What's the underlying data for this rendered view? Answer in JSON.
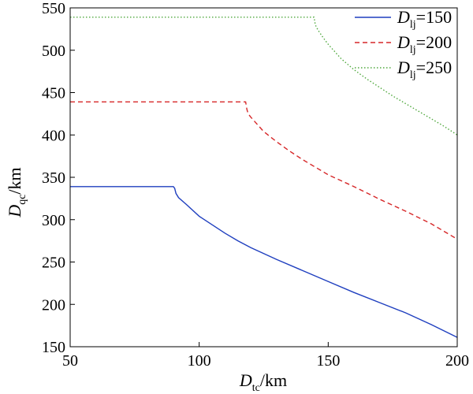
{
  "chart_data": {
    "type": "line",
    "xlabel": {
      "symbol": "D",
      "sub": "tc",
      "unit": "/km"
    },
    "ylabel": {
      "symbol": "D",
      "sub": "qc",
      "unit": "/km"
    },
    "xlim": [
      50,
      200
    ],
    "ylim": [
      150,
      550
    ],
    "xticks": [
      50,
      100,
      150,
      200
    ],
    "yticks": [
      150,
      200,
      250,
      300,
      350,
      400,
      450,
      500,
      550
    ],
    "grid": false,
    "legend_position": "top-right",
    "series": [
      {
        "legend": {
          "symbol": "D",
          "sub": "lj",
          "value": "=150"
        },
        "color": "#1f3fbf",
        "dash": "solid",
        "points": [
          [
            50,
            339
          ],
          [
            90,
            339
          ],
          [
            90.5,
            337
          ],
          [
            91,
            331
          ],
          [
            92,
            326
          ],
          [
            95,
            318
          ],
          [
            100,
            304
          ],
          [
            105,
            294
          ],
          [
            110,
            284
          ],
          [
            115,
            275
          ],
          [
            120,
            267
          ],
          [
            125,
            260
          ],
          [
            130,
            253
          ],
          [
            140,
            240
          ],
          [
            150,
            227
          ],
          [
            160,
            214
          ],
          [
            170,
            202
          ],
          [
            180,
            190
          ],
          [
            190,
            176
          ],
          [
            200,
            161
          ]
        ]
      },
      {
        "legend": {
          "symbol": "D",
          "sub": "lj",
          "value": "=200"
        },
        "color": "#d62728",
        "dash": "dashed",
        "points": [
          [
            50,
            439
          ],
          [
            118,
            439
          ],
          [
            118.5,
            430
          ],
          [
            119,
            425
          ],
          [
            120,
            421
          ],
          [
            125,
            404
          ],
          [
            130,
            392
          ],
          [
            135,
            381
          ],
          [
            140,
            371
          ],
          [
            145,
            362
          ],
          [
            150,
            353
          ],
          [
            160,
            339
          ],
          [
            170,
            324
          ],
          [
            180,
            310
          ],
          [
            190,
            295
          ],
          [
            200,
            277
          ]
        ]
      },
      {
        "legend": {
          "symbol": "D",
          "sub": "lj",
          "value": "=250"
        },
        "color": "#4fa83d",
        "dash": "dotted",
        "points": [
          [
            50,
            539
          ],
          [
            144.5,
            539
          ],
          [
            145,
            530
          ],
          [
            146,
            524
          ],
          [
            148,
            515
          ],
          [
            150,
            507
          ],
          [
            155,
            490
          ],
          [
            160,
            477
          ],
          [
            165,
            466
          ],
          [
            170,
            456
          ],
          [
            175,
            446
          ],
          [
            180,
            437
          ],
          [
            185,
            428
          ],
          [
            190,
            419
          ],
          [
            195,
            410
          ],
          [
            200,
            400
          ]
        ]
      }
    ]
  }
}
